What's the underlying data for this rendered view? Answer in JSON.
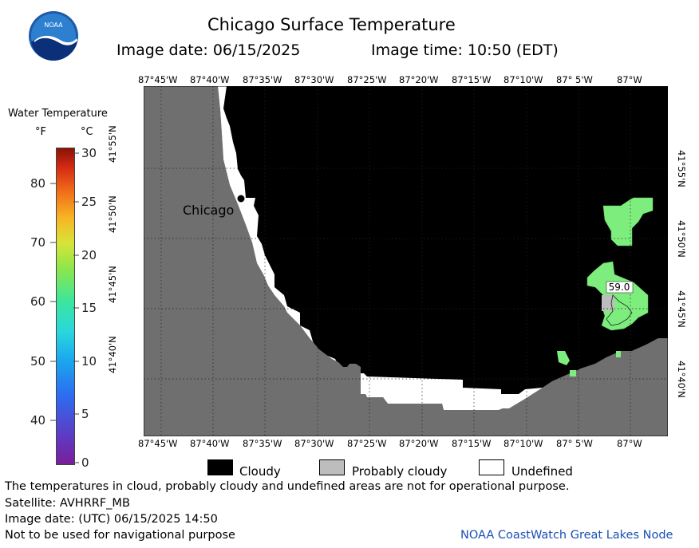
{
  "header": {
    "title": "Chicago Surface Temperature",
    "image_date": "Image date: 06/15/2025",
    "image_time": "Image time: 10:50 (EDT)"
  },
  "logo": {
    "text": "NOAA"
  },
  "colorbar": {
    "title": "Water Temperature",
    "unit_f": "°F",
    "unit_c": "°C",
    "f_ticks": [
      "80",
      "70",
      "60",
      "50",
      "40"
    ],
    "c_ticks": [
      "30",
      "25",
      "20",
      "15",
      "10",
      "5",
      "0"
    ]
  },
  "map": {
    "lon_labels": [
      "87°45'W",
      "87°40'W",
      "87°35'W",
      "87°30'W",
      "87°25'W",
      "87°20'W",
      "87°15'W",
      "87°10'W",
      "87° 5'W",
      "87°W"
    ],
    "lat_labels": [
      "41°55'N",
      "41°50'N",
      "41°45'N",
      "41°40'N"
    ],
    "city_label": "Chicago",
    "temperature_label": "59.0"
  },
  "legend": {
    "cloudy": "Cloudy",
    "probably_cloudy": "Probably cloudy",
    "undefined": "Undefined"
  },
  "footer": {
    "disclaimer": "The temperatures in cloud, probably cloudy and undefined areas are not for operational purpose.",
    "satellite": "Satellite: AVHRRF_MB",
    "utc_date": "Image date: (UTC) 06/15/2025  14:50",
    "navigation": "Not to be used for navigational purpose",
    "credit": "NOAA CoastWatch Great Lakes Node"
  },
  "colors": {
    "land": "#6f6f6f",
    "cloud": "#000000",
    "probably_cloudy": "#bdbdbd",
    "undefined": "#ffffff",
    "water_59": "#7dee7d"
  }
}
